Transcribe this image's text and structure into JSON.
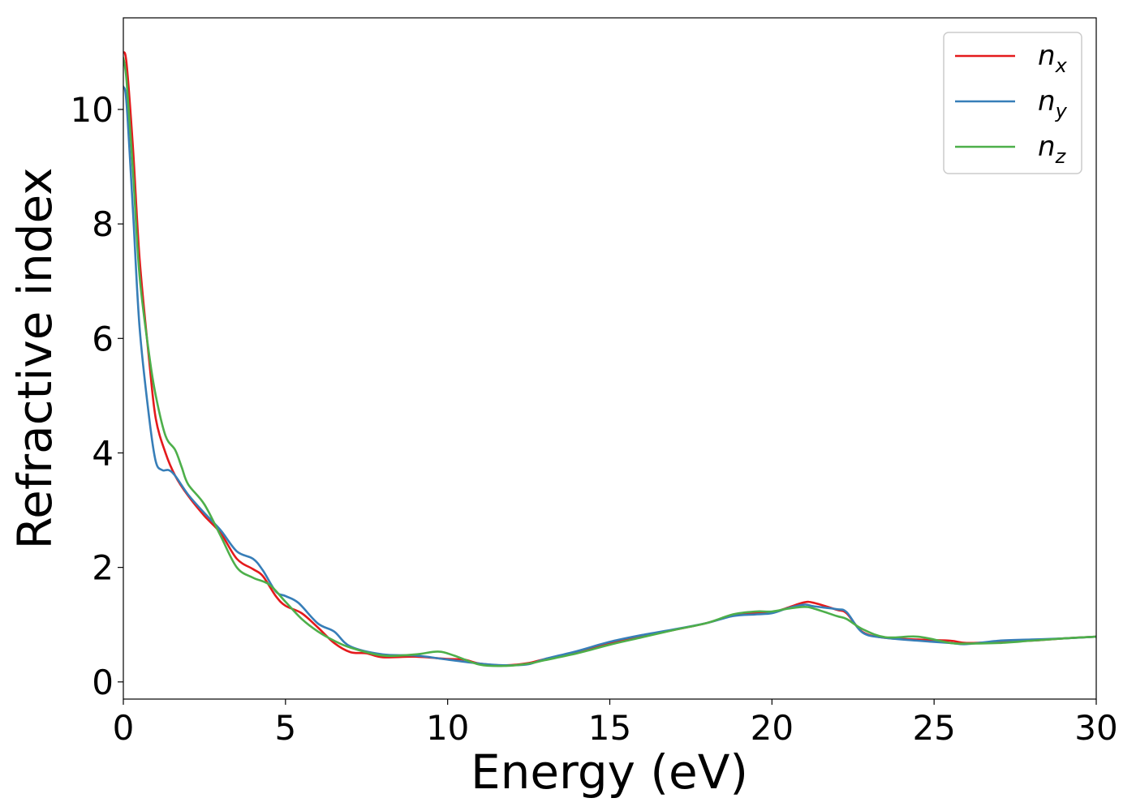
{
  "chart_data": {
    "type": "line",
    "xlabel": "Energy (eV)",
    "ylabel": "Refractive index",
    "xlim": [
      0,
      30
    ],
    "ylim": [
      -0.3,
      11.6
    ],
    "xticks": [
      0,
      5,
      10,
      15,
      20,
      25,
      30
    ],
    "yticks": [
      0,
      2,
      4,
      6,
      8,
      10
    ],
    "grid": false,
    "legend_position": "top-right",
    "series": [
      {
        "name": "n_x",
        "label_main": "n",
        "label_sub": "x",
        "color": "#e41a1c",
        "x": [
          0,
          0.1,
          0.3,
          0.5,
          0.8,
          1.0,
          1.3,
          1.6,
          2.0,
          2.5,
          3.0,
          3.5,
          4.0,
          4.3,
          4.7,
          5.0,
          5.5,
          6.0,
          6.5,
          7.0,
          7.5,
          8.0,
          9.0,
          10.0,
          10.5,
          11.0,
          11.8,
          12.5,
          13.0,
          14.0,
          15.0,
          16.0,
          17.0,
          18.0,
          18.8,
          19.5,
          20.0,
          20.5,
          21.0,
          21.3,
          22.0,
          22.3,
          22.8,
          23.5,
          24.5,
          25.5,
          26.0,
          27.0,
          28.0,
          29.0,
          30.0
        ],
        "y": [
          11.0,
          10.8,
          9.3,
          7.4,
          5.6,
          4.6,
          4.0,
          3.6,
          3.25,
          2.9,
          2.6,
          2.15,
          1.97,
          1.85,
          1.5,
          1.33,
          1.2,
          0.95,
          0.68,
          0.52,
          0.5,
          0.43,
          0.44,
          0.4,
          0.39,
          0.32,
          0.29,
          0.33,
          0.4,
          0.52,
          0.67,
          0.8,
          0.91,
          1.03,
          1.16,
          1.2,
          1.21,
          1.3,
          1.39,
          1.38,
          1.26,
          1.2,
          0.87,
          0.77,
          0.74,
          0.72,
          0.68,
          0.7,
          0.72,
          0.76,
          0.79
        ]
      },
      {
        "name": "n_y",
        "label_main": "n",
        "label_sub": "y",
        "color": "#377eb8",
        "x": [
          0,
          0.1,
          0.3,
          0.5,
          0.8,
          1.0,
          1.2,
          1.4,
          1.6,
          2.0,
          2.5,
          3.0,
          3.5,
          4.0,
          4.3,
          4.7,
          5.0,
          5.4,
          6.0,
          6.5,
          7.0,
          8.0,
          9.0,
          10.0,
          11.0,
          11.8,
          12.5,
          13.0,
          14.0,
          15.0,
          16.0,
          17.0,
          18.0,
          18.8,
          19.5,
          20.0,
          20.5,
          21.0,
          21.3,
          22.0,
          22.3,
          22.8,
          23.5,
          24.5,
          25.5,
          26.0,
          27.0,
          28.0,
          29.0,
          30.0
        ],
        "y": [
          10.4,
          10.1,
          8.2,
          6.2,
          4.6,
          3.85,
          3.7,
          3.7,
          3.6,
          3.27,
          2.95,
          2.65,
          2.28,
          2.15,
          1.95,
          1.58,
          1.5,
          1.38,
          1.02,
          0.88,
          0.62,
          0.48,
          0.46,
          0.39,
          0.32,
          0.29,
          0.31,
          0.4,
          0.54,
          0.7,
          0.82,
          0.92,
          1.03,
          1.15,
          1.18,
          1.2,
          1.29,
          1.35,
          1.32,
          1.27,
          1.22,
          0.86,
          0.77,
          0.72,
          0.68,
          0.66,
          0.72,
          0.74,
          0.76,
          0.79
        ]
      },
      {
        "name": "n_z",
        "label_main": "n",
        "label_sub": "z",
        "color": "#4daf4a",
        "x": [
          0,
          0.1,
          0.3,
          0.5,
          0.8,
          1.0,
          1.3,
          1.6,
          1.8,
          2.0,
          2.5,
          3.0,
          3.5,
          4.0,
          4.5,
          5.0,
          5.5,
          6.0,
          6.5,
          7.0,
          8.0,
          9.0,
          9.7,
          10.2,
          11.0,
          11.8,
          12.5,
          13.0,
          14.0,
          15.0,
          16.0,
          17.0,
          18.0,
          18.8,
          19.5,
          20.0,
          20.5,
          21.0,
          21.3,
          22.0,
          22.3,
          22.8,
          23.5,
          24.5,
          25.5,
          26.0,
          27.0,
          28.0,
          29.0,
          30.0
        ],
        "y": [
          10.9,
          10.5,
          8.9,
          7.1,
          5.7,
          5.0,
          4.3,
          4.05,
          3.75,
          3.45,
          3.1,
          2.55,
          2.0,
          1.82,
          1.7,
          1.4,
          1.1,
          0.88,
          0.72,
          0.6,
          0.46,
          0.48,
          0.53,
          0.46,
          0.3,
          0.28,
          0.32,
          0.38,
          0.5,
          0.65,
          0.78,
          0.91,
          1.03,
          1.18,
          1.23,
          1.23,
          1.28,
          1.31,
          1.28,
          1.15,
          1.1,
          0.92,
          0.78,
          0.79,
          0.68,
          0.67,
          0.68,
          0.72,
          0.76,
          0.79
        ]
      }
    ]
  }
}
